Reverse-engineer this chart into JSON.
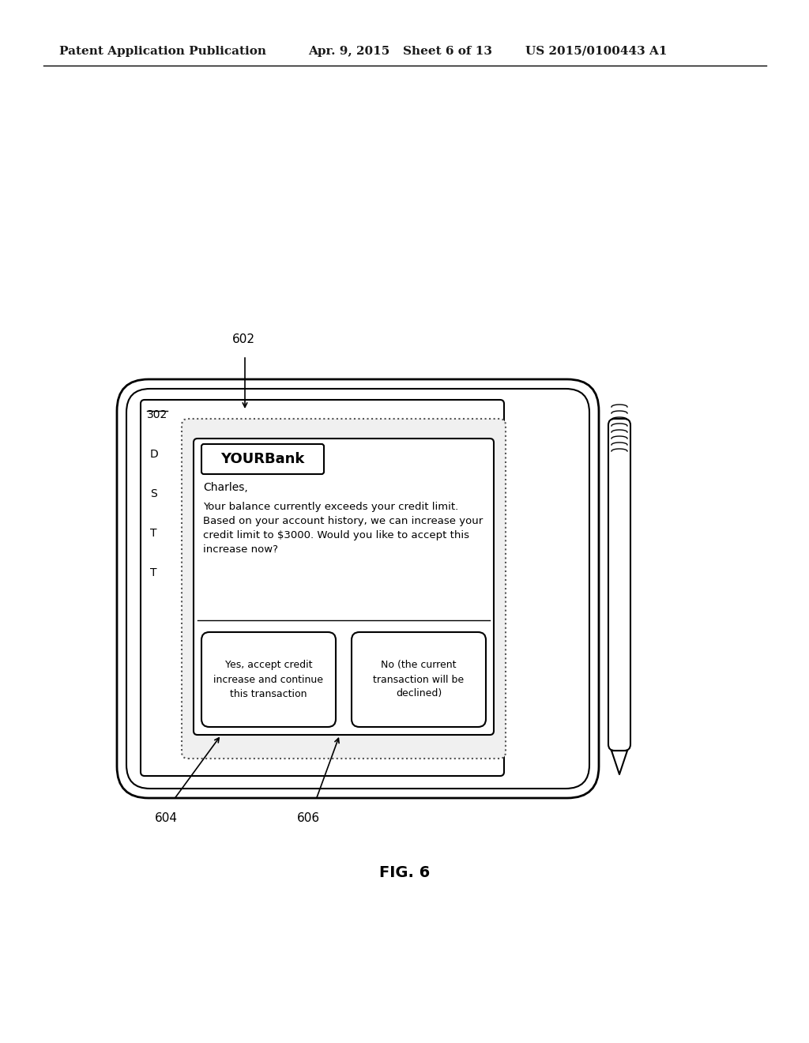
{
  "bg_color": "#ffffff",
  "header_text": "Patent Application Publication",
  "header_date": "Apr. 9, 2015",
  "header_sheet": "Sheet 6 of 13",
  "header_patent": "US 2015/0100443 A1",
  "fig_label": "FIG. 6",
  "label_302": "302",
  "label_602": "602",
  "label_604": "604",
  "label_606": "606",
  "yourbank_text": "YOURBank",
  "greeting": "Charles,",
  "message": "Your balance currently exceeds your credit limit.\nBased on your account history, we can increase your\ncredit limit to $3000. Would you like to accept this\nincrease now?",
  "btn1": "Yes, accept credit\nincrease and continue\nthis transaction",
  "btn2": "No (the current\ntransaction will be\ndeclined)",
  "left_col_partial": "D\nS\nT\nT"
}
